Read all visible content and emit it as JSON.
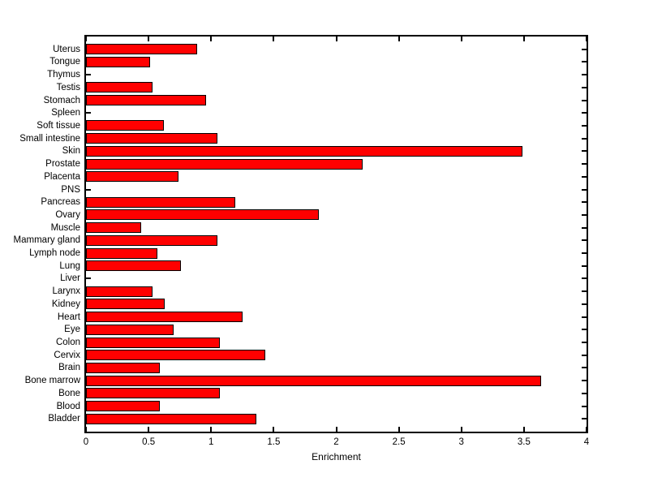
{
  "figure": {
    "background": "#ffffff",
    "axis_color": "#000000",
    "text_color": "#000000"
  },
  "chart_data": {
    "type": "bar",
    "orientation": "horizontal",
    "title": "",
    "xlabel": "Enrichment",
    "ylabel": "",
    "xlim": [
      0,
      4
    ],
    "xticks": [
      0,
      0.5,
      1,
      1.5,
      2,
      2.5,
      3,
      3.5,
      4
    ],
    "xtick_labels": [
      "0",
      "0.5",
      "1",
      "1.5",
      "2",
      "2.5",
      "3",
      "3.5",
      "4"
    ],
    "grid": false,
    "legend": null,
    "bar_color": "#ff0000",
    "bar_edge_color": "#000000",
    "categories": [
      "Uterus",
      "Tongue",
      "Thymus",
      "Testis",
      "Stomach",
      "Spleen",
      "Soft tissue",
      "Small intestine",
      "Skin",
      "Prostate",
      "Placenta",
      "PNS",
      "Pancreas",
      "Ovary",
      "Muscle",
      "Mammary gland",
      "Lymph node",
      "Lung",
      "Liver",
      "Larynx",
      "Kidney",
      "Heart",
      "Eye",
      "Colon",
      "Cervix",
      "Brain",
      "Bone marrow",
      "Bone",
      "Blood",
      "Bladder"
    ],
    "values": [
      0.89,
      0.51,
      0,
      0.53,
      0.96,
      0,
      0.62,
      1.05,
      3.49,
      2.21,
      0.74,
      0,
      1.19,
      1.86,
      0.44,
      1.05,
      0.57,
      0.76,
      0,
      0.53,
      0.63,
      1.25,
      0.7,
      1.07,
      1.43,
      0.59,
      3.64,
      1.07,
      0.59,
      1.36
    ]
  }
}
